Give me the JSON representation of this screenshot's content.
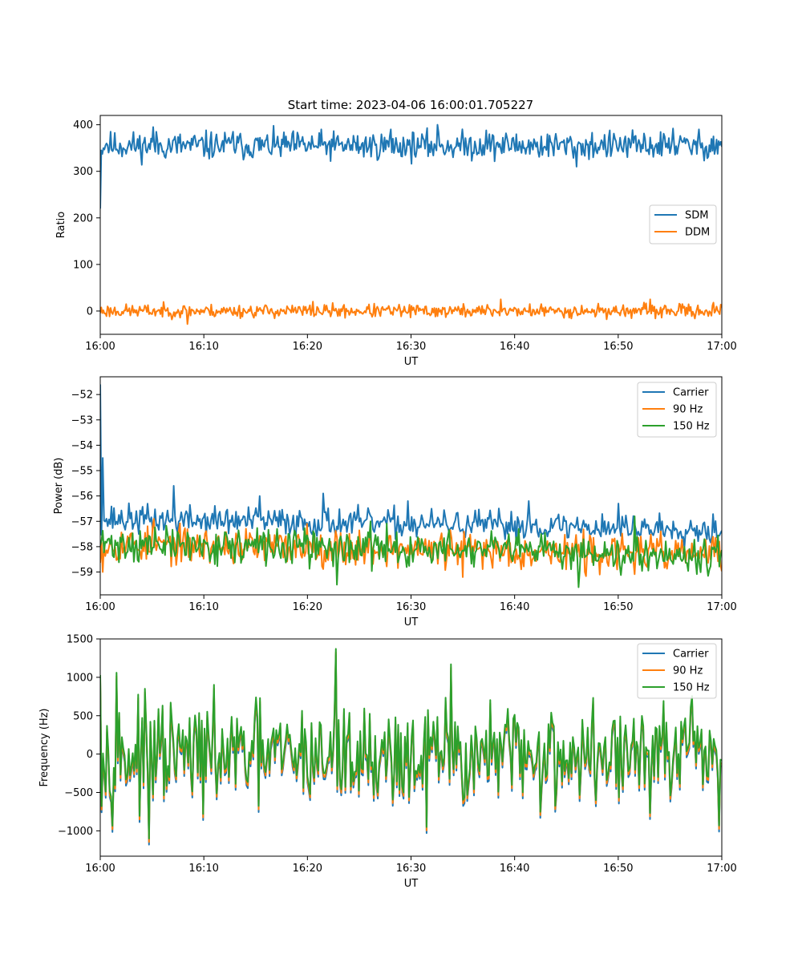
{
  "figure_title": "Start time: 2023-04-06 16:00:01.705227",
  "colors": {
    "c0": "#1f77b4",
    "c1": "#ff7f0e",
    "c2": "#2ca02c"
  },
  "chart_data": [
    {
      "type": "line",
      "title": "Start time: 2023-04-06 16:00:01.705227",
      "xlabel": "UT",
      "ylabel": "Ratio",
      "xlim": [
        0,
        60
      ],
      "ylim": [
        -50,
        420
      ],
      "x_ticks": [
        0,
        10,
        20,
        30,
        40,
        50,
        60
      ],
      "x_tick_labels": [
        "16:00",
        "16:10",
        "16:20",
        "16:30",
        "16:40",
        "16:50",
        "17:00"
      ],
      "y_ticks": [
        0,
        100,
        200,
        300,
        400
      ],
      "y_tick_labels": [
        "0",
        "100",
        "200",
        "300",
        "400"
      ],
      "legend": "center-right",
      "grid": false,
      "series": [
        {
          "name": "SDM",
          "color": "#1f77b4",
          "mean": 355,
          "noise": 15,
          "seed": 11,
          "points": 600,
          "x": [
            0,
            0.15,
            0.3,
            0.6,
            5.1,
            12.8,
            21.3,
            28.0,
            32.6,
            37.3,
            39.8,
            46.0,
            55.3,
            59.2
          ],
          "y": [
            220,
            345,
            350,
            360,
            395,
            385,
            390,
            390,
            400,
            388,
            370,
            310,
            392,
            375
          ]
        },
        {
          "name": "DDM",
          "color": "#ff7f0e",
          "mean": 0,
          "noise": 7,
          "seed": 23,
          "points": 600,
          "x": [
            8.4,
            20.5,
            38.7,
            53.1,
            59.2
          ],
          "y": [
            -28,
            20,
            25,
            25,
            18
          ]
        }
      ]
    },
    {
      "type": "line",
      "xlabel": "UT",
      "ylabel": "Power (dB)",
      "xlim": [
        0,
        60
      ],
      "ylim": [
        -59.9,
        -51.3
      ],
      "x_ticks": [
        0,
        10,
        20,
        30,
        40,
        50,
        60
      ],
      "x_tick_labels": [
        "16:00",
        "16:10",
        "16:20",
        "16:30",
        "16:40",
        "16:50",
        "17:00"
      ],
      "y_ticks": [
        -59,
        -58,
        -57,
        -56,
        -55,
        -54,
        -53,
        -52
      ],
      "y_tick_labels": [
        "−59",
        "−58",
        "−57",
        "−56",
        "−55",
        "−54",
        "−53",
        "−52"
      ],
      "legend": "top-right",
      "grid": false,
      "series": [
        {
          "name": "Carrier",
          "color": "#1f77b4",
          "mean": -56.9,
          "trend": -0.4,
          "noise": 0.28,
          "seed": 37,
          "points": 500,
          "x": [
            0,
            0.3,
            0.6,
            7.1,
            15.4,
            21.5,
            29.7,
            41.4,
            50.0
          ],
          "y": [
            -51.6,
            -54.5,
            -56.9,
            -55.6,
            -56.0,
            -55.9,
            -56.2,
            -56.2,
            -56.3
          ]
        },
        {
          "name": "90 Hz",
          "color": "#ff7f0e",
          "mean": -57.9,
          "trend": -0.4,
          "noise": 0.35,
          "seed": 53,
          "points": 500,
          "x": [
            0.3,
            5.2,
            20.0,
            35.0,
            46.8
          ],
          "y": [
            -59.0,
            -56.9,
            -57.1,
            -59.2,
            -59.0
          ]
        },
        {
          "name": "150 Hz",
          "color": "#2ca02c",
          "mean": -57.9,
          "trend": -0.4,
          "noise": 0.35,
          "seed": 71,
          "points": 500,
          "x": [
            22.8,
            26.1,
            46.2,
            51.6
          ],
          "y": [
            -59.5,
            -57.0,
            -59.6,
            -56.8
          ]
        }
      ]
    },
    {
      "type": "line",
      "xlabel": "UT",
      "ylabel": "Frequency (Hz)",
      "xlim": [
        0,
        60
      ],
      "ylim": [
        -1330,
        1500
      ],
      "x_ticks": [
        0,
        10,
        20,
        30,
        40,
        50,
        60
      ],
      "x_tick_labels": [
        "16:00",
        "16:10",
        "16:20",
        "16:30",
        "16:40",
        "16:50",
        "17:00"
      ],
      "y_ticks": [
        -1000,
        -500,
        0,
        500,
        1000,
        1500
      ],
      "y_tick_labels": [
        "−1000",
        "−500",
        "0",
        "500",
        "1000",
        "1500"
      ],
      "legend": "top-right",
      "grid": false,
      "series": [
        {
          "name": "Carrier",
          "color": "#1f77b4",
          "offset": -80
        },
        {
          "name": "90 Hz",
          "color": "#ff7f0e",
          "offset": -45
        },
        {
          "name": "150 Hz",
          "color": "#2ca02c",
          "offset": 0
        }
      ],
      "base_signal": {
        "mean": 0,
        "noise": 320,
        "seed": 97,
        "points": 460,
        "x": [
          0,
          1.6,
          4.7,
          4.75,
          22.8,
          31.5,
          33.8,
          59.7
        ],
        "y": [
          1030,
          1060,
          -1200,
          -1100,
          1370,
          -950,
          1170,
          -930
        ]
      }
    }
  ]
}
